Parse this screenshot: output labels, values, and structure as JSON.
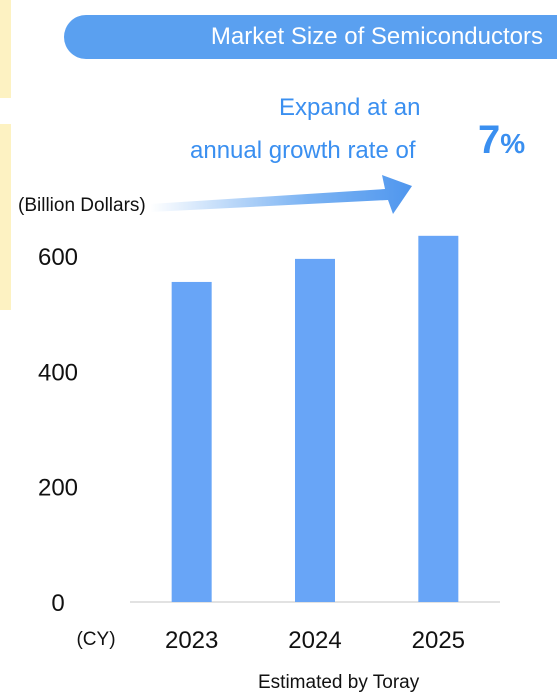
{
  "header": {
    "title": "Market Size of Semiconductors"
  },
  "annotation": {
    "line1": "Expand at an",
    "line2": "annual growth rate of",
    "rate_value": "7",
    "rate_unit": "%"
  },
  "source_note": "Estimated by Toray",
  "colors": {
    "bar": "#68a5f7",
    "title_bg": "#5aa0f0",
    "accent_text": "#3a8ff0",
    "side_strip": "#fdf2c2"
  },
  "chart_data": {
    "type": "bar",
    "title": "Market Size of Semiconductors",
    "ylabel": "(Billion Dollars)",
    "xlabel": "(CY)",
    "categories": [
      "2023",
      "2024",
      "2025"
    ],
    "values": [
      555,
      595,
      635
    ],
    "ylim": [
      0,
      600
    ],
    "yticks": [
      0,
      200,
      400,
      600
    ],
    "grid": false
  }
}
